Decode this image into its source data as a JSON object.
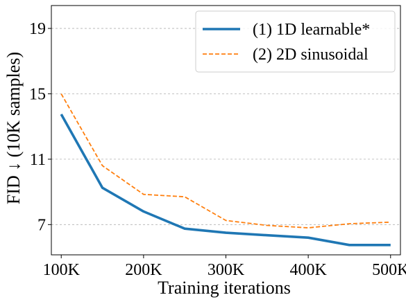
{
  "chart_data": {
    "type": "line",
    "xlabel": "Training iterations",
    "ylabel": "FID ↓ (10K samples)",
    "x": [
      100000,
      150000,
      200000,
      250000,
      300000,
      350000,
      400000,
      450000,
      500000
    ],
    "x_tick_values": [
      100000,
      200000,
      300000,
      400000,
      500000
    ],
    "x_tick_labels": [
      "100K",
      "200K",
      "300K",
      "400K",
      "500K"
    ],
    "y_ticks": [
      7,
      11,
      15,
      19
    ],
    "xlim": [
      88000,
      512000
    ],
    "ylim": [
      5.15,
      20.4
    ],
    "grid": "horizontal dashed",
    "legend_position": "top-right",
    "series": [
      {
        "name": "(1) 1D learnable*",
        "style": "solid",
        "color": "#1f77b4",
        "values": [
          13.75,
          9.25,
          7.8,
          6.75,
          6.5,
          6.35,
          6.2,
          5.75,
          5.75
        ]
      },
      {
        "name": "(2) 2D sinusoidal",
        "style": "dashed",
        "color": "#ff7f0e",
        "values": [
          15.0,
          10.6,
          8.85,
          8.7,
          7.25,
          6.95,
          6.8,
          7.05,
          7.15
        ]
      }
    ]
  }
}
